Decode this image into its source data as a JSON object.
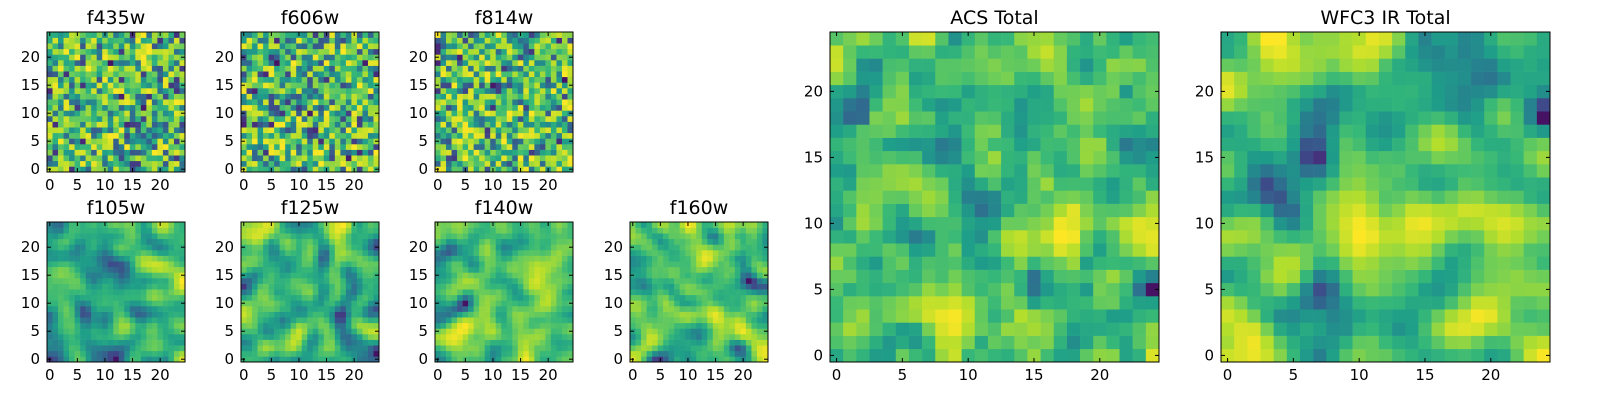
{
  "chart_data": [
    {
      "type": "heatmap",
      "title": "f435w",
      "x": [
        0,
        24
      ],
      "y": [
        0,
        24
      ],
      "xlim": [
        0,
        24
      ],
      "ylim": [
        0,
        24
      ],
      "xticks": [
        0,
        5,
        10,
        15,
        20
      ],
      "yticks": [
        0,
        5,
        10,
        15,
        20
      ],
      "colormap": "viridis",
      "grid": false,
      "smoothness": 0.0
    },
    {
      "type": "heatmap",
      "title": "f606w",
      "x": [
        0,
        24
      ],
      "y": [
        0,
        24
      ],
      "xlim": [
        0,
        24
      ],
      "ylim": [
        0,
        24
      ],
      "xticks": [
        0,
        5,
        10,
        15,
        20
      ],
      "yticks": [
        0,
        5,
        10,
        15,
        20
      ],
      "colormap": "viridis",
      "grid": false,
      "smoothness": 0.0
    },
    {
      "type": "heatmap",
      "title": "f814w",
      "x": [
        0,
        24
      ],
      "y": [
        0,
        24
      ],
      "xlim": [
        0,
        24
      ],
      "ylim": [
        0,
        24
      ],
      "xticks": [
        0,
        5,
        10,
        15,
        20
      ],
      "yticks": [
        0,
        5,
        10,
        15,
        20
      ],
      "colormap": "viridis",
      "grid": false,
      "smoothness": 0.0
    },
    {
      "type": "heatmap",
      "title": "f105w",
      "x": [
        0,
        24
      ],
      "y": [
        0,
        24
      ],
      "xlim": [
        0,
        24
      ],
      "ylim": [
        0,
        24
      ],
      "xticks": [
        0,
        5,
        10,
        15,
        20
      ],
      "yticks": [
        0,
        5,
        10,
        15,
        20
      ],
      "colormap": "viridis",
      "grid": false,
      "smoothness": 0.6
    },
    {
      "type": "heatmap",
      "title": "f125w",
      "x": [
        0,
        24
      ],
      "y": [
        0,
        24
      ],
      "xlim": [
        0,
        24
      ],
      "ylim": [
        0,
        24
      ],
      "xticks": [
        0,
        5,
        10,
        15,
        20
      ],
      "yticks": [
        0,
        5,
        10,
        15,
        20
      ],
      "colormap": "viridis",
      "grid": false,
      "smoothness": 0.6
    },
    {
      "type": "heatmap",
      "title": "f140w",
      "x": [
        0,
        24
      ],
      "y": [
        0,
        24
      ],
      "xlim": [
        0,
        24
      ],
      "ylim": [
        0,
        24
      ],
      "xticks": [
        0,
        5,
        10,
        15,
        20
      ],
      "yticks": [
        0,
        5,
        10,
        15,
        20
      ],
      "colormap": "viridis",
      "grid": false,
      "smoothness": 0.6
    },
    {
      "type": "heatmap",
      "title": "f160w",
      "x": [
        0,
        24
      ],
      "y": [
        0,
        24
      ],
      "xlim": [
        0,
        24
      ],
      "ylim": [
        0,
        24
      ],
      "xticks": [
        0,
        5,
        10,
        15,
        20
      ],
      "yticks": [
        0,
        5,
        10,
        15,
        20
      ],
      "colormap": "viridis",
      "grid": false,
      "smoothness": 0.6
    },
    {
      "type": "heatmap",
      "title": "ACS Total",
      "x": [
        0,
        24
      ],
      "y": [
        0,
        24
      ],
      "xlim": [
        0,
        24
      ],
      "ylim": [
        0,
        24
      ],
      "xticks": [
        0,
        5,
        10,
        15,
        20
      ],
      "yticks": [
        0,
        5,
        10,
        15,
        20
      ],
      "colormap": "viridis",
      "grid": false,
      "smoothness": 0.25
    },
    {
      "type": "heatmap",
      "title": "WFC3 IR Total",
      "x": [
        0,
        24
      ],
      "y": [
        0,
        24
      ],
      "xlim": [
        0,
        24
      ],
      "ylim": [
        0,
        24
      ],
      "xticks": [
        0,
        5,
        10,
        15,
        20
      ],
      "yticks": [
        0,
        5,
        10,
        15,
        20
      ],
      "colormap": "viridis",
      "grid": false,
      "smoothness": 0.8
    }
  ]
}
